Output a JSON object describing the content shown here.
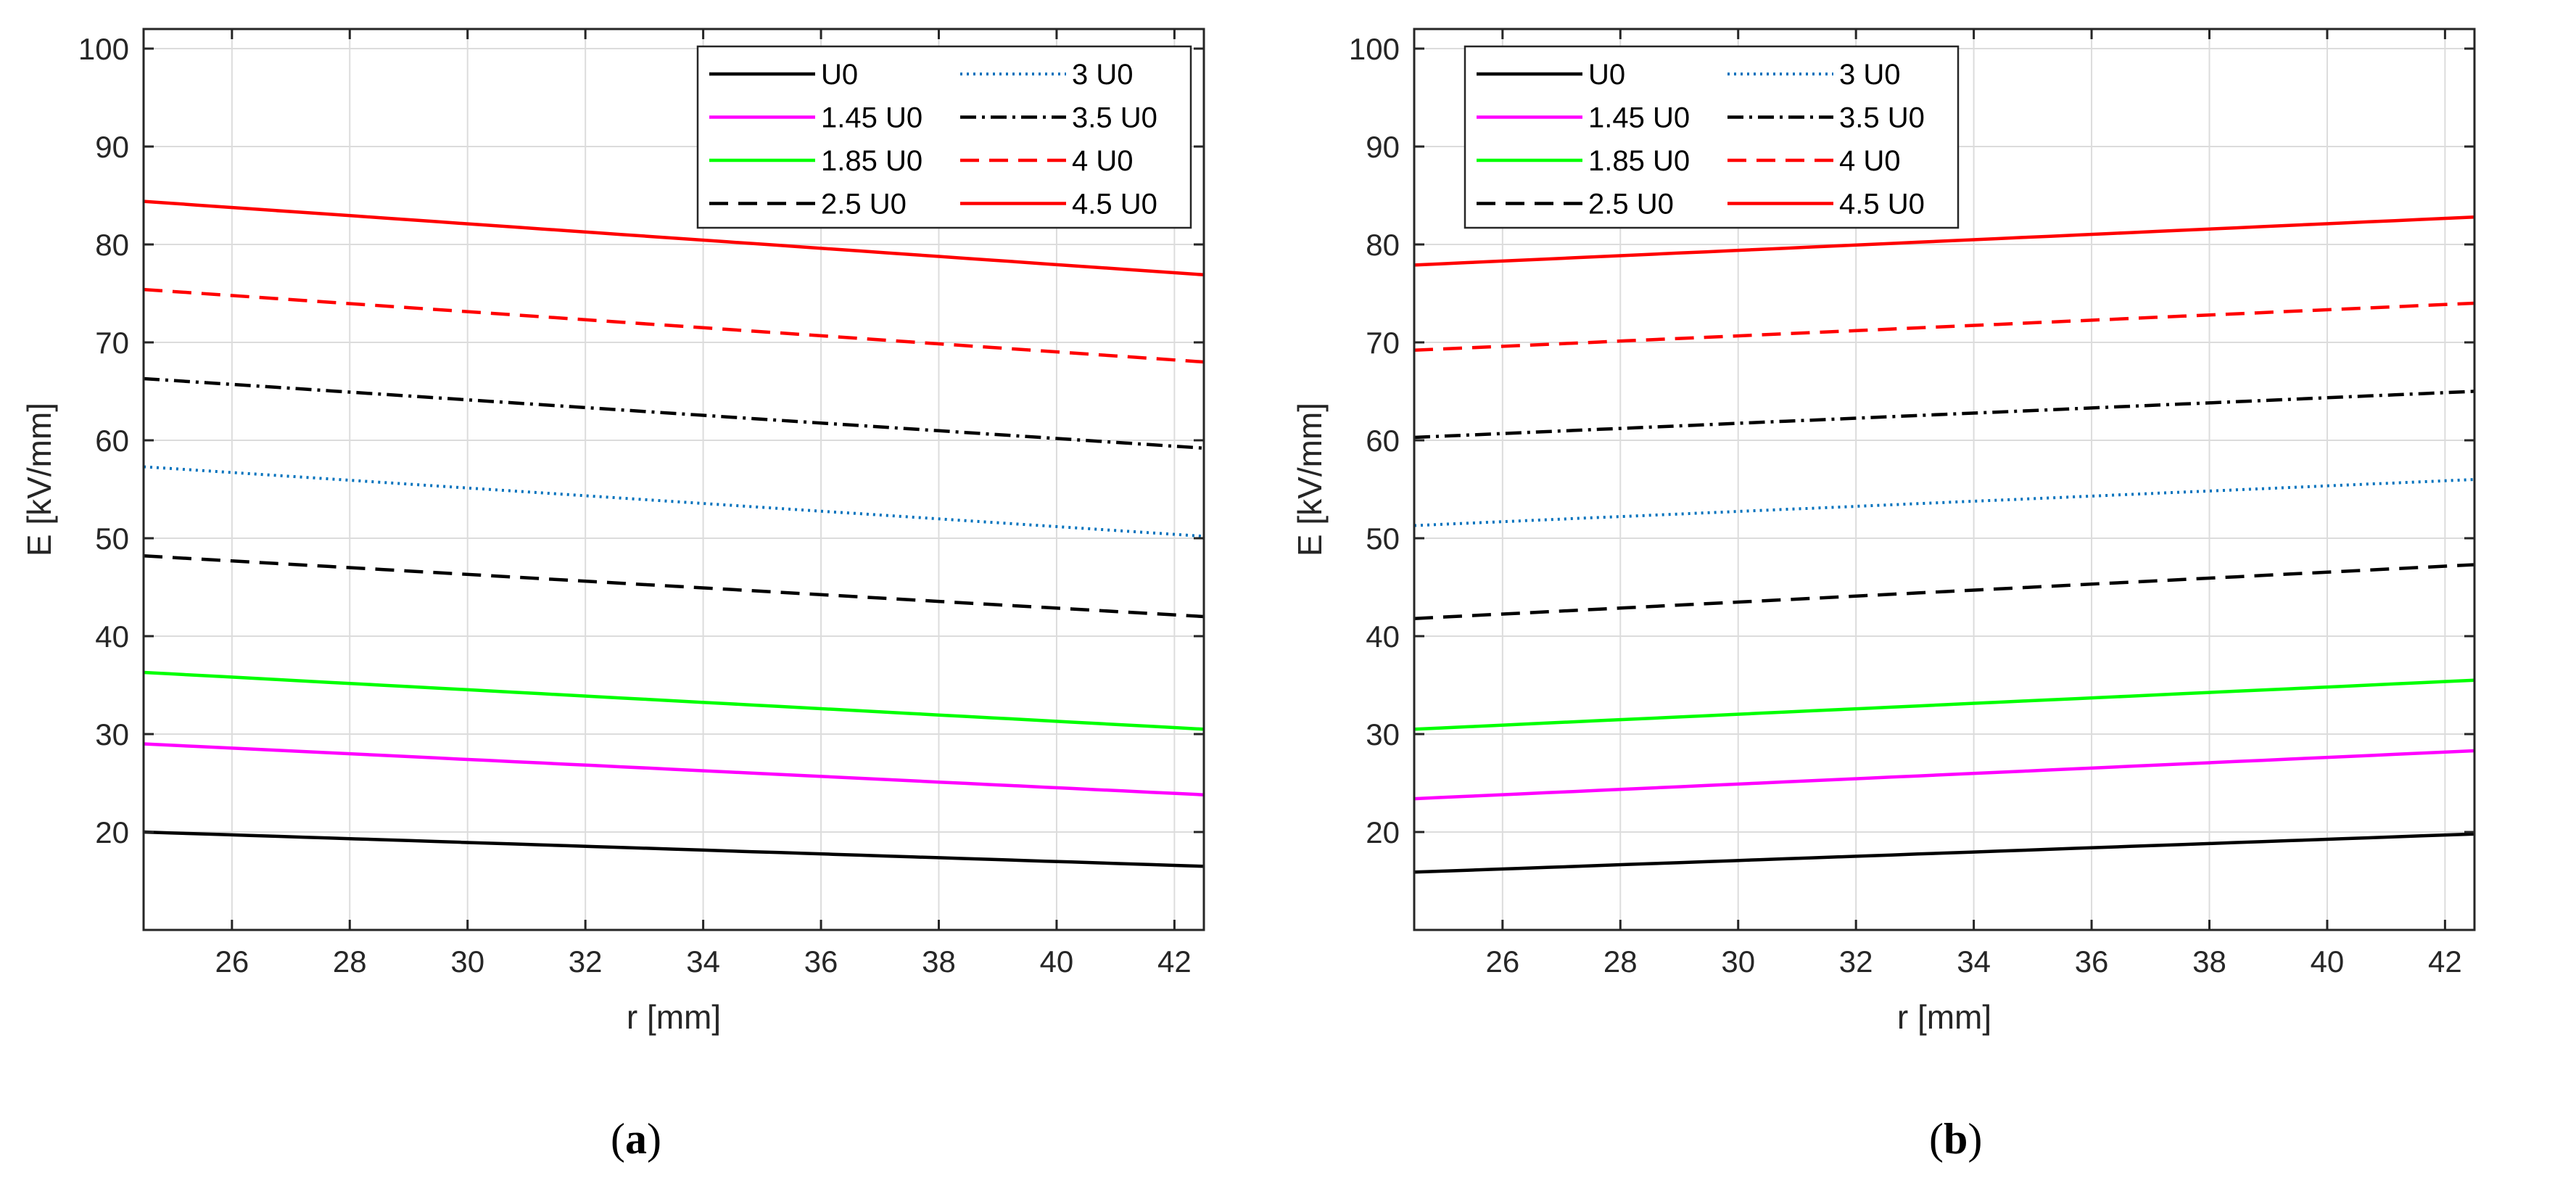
{
  "chart_data": [
    {
      "type": "line",
      "panel": "(a)",
      "panel_label_letter": "a",
      "xlabel": "r [mm]",
      "ylabel": "E [kV/mm]",
      "xlim": [
        24.5,
        42.5
      ],
      "ylim": [
        10,
        102
      ],
      "xticks": [
        26,
        28,
        30,
        32,
        34,
        36,
        38,
        40,
        42
      ],
      "yticks": [
        20,
        30,
        40,
        50,
        60,
        70,
        80,
        90,
        100
      ],
      "grid": true,
      "legend_position": "top-right",
      "series": [
        {
          "name": "U0",
          "color": "#000000",
          "style": "solid",
          "start": 20.0,
          "end": 16.5
        },
        {
          "name": "1.45 U0",
          "color": "#ff00ff",
          "style": "solid",
          "start": 29.0,
          "end": 23.8
        },
        {
          "name": "1.85 U0",
          "color": "#00ff00",
          "style": "solid",
          "start": 36.3,
          "end": 30.5
        },
        {
          "name": "2.5 U0",
          "color": "#000000",
          "style": "dashed",
          "start": 48.2,
          "end": 42.0
        },
        {
          "name": "3 U0",
          "color": "#0072bd",
          "style": "dotted",
          "start": 57.3,
          "end": 50.2
        },
        {
          "name": "3.5 U0",
          "color": "#000000",
          "style": "dashdot",
          "start": 66.3,
          "end": 59.2
        },
        {
          "name": "4 U0",
          "color": "#ff0000",
          "style": "dashed",
          "start": 75.4,
          "end": 68.0
        },
        {
          "name": "4.5 U0",
          "color": "#ff0000",
          "style": "solid",
          "start": 84.4,
          "end": 76.9
        }
      ]
    },
    {
      "type": "line",
      "panel": "(b)",
      "panel_label_letter": "b",
      "xlabel": "r [mm]",
      "ylabel": "E [kV/mm]",
      "xlim": [
        24.5,
        42.5
      ],
      "ylim": [
        10,
        102
      ],
      "xticks": [
        26,
        28,
        30,
        32,
        34,
        36,
        38,
        40,
        42
      ],
      "yticks": [
        20,
        30,
        40,
        50,
        60,
        70,
        80,
        90,
        100
      ],
      "grid": true,
      "legend_position": "top-left",
      "series": [
        {
          "name": "U0",
          "color": "#000000",
          "style": "solid",
          "start": 15.9,
          "end": 19.8
        },
        {
          "name": "1.45 U0",
          "color": "#ff00ff",
          "style": "solid",
          "start": 23.4,
          "end": 28.3
        },
        {
          "name": "1.85 U0",
          "color": "#00ff00",
          "style": "solid",
          "start": 30.5,
          "end": 35.5
        },
        {
          "name": "2.5 U0",
          "color": "#000000",
          "style": "dashed",
          "start": 41.8,
          "end": 47.3
        },
        {
          "name": "3 U0",
          "color": "#0072bd",
          "style": "dotted",
          "start": 51.3,
          "end": 56.0
        },
        {
          "name": "3.5 U0",
          "color": "#000000",
          "style": "dashdot",
          "start": 60.3,
          "end": 65.0
        },
        {
          "name": "4 U0",
          "color": "#ff0000",
          "style": "dashed",
          "start": 69.2,
          "end": 74.0
        },
        {
          "name": "4.5 U0",
          "color": "#ff0000",
          "style": "solid",
          "start": 77.9,
          "end": 82.8
        }
      ]
    }
  ]
}
